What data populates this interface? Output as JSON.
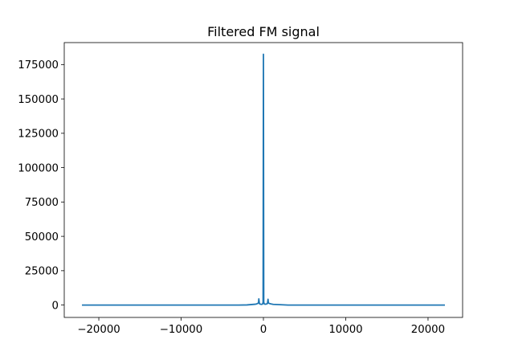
{
  "chart_data": {
    "type": "line",
    "title": "Filtered FM signal",
    "xlabel": "",
    "ylabel": "",
    "xlim": [
      -24200,
      24200
    ],
    "ylim": [
      -9000,
      191000
    ],
    "xticks": [
      -20000,
      -10000,
      0,
      10000,
      20000
    ],
    "xtick_labels": [
      "−20000",
      "−10000",
      "0",
      "10000",
      "20000"
    ],
    "yticks": [
      0,
      25000,
      50000,
      75000,
      100000,
      125000,
      150000,
      175000
    ],
    "ytick_labels": [
      "0",
      "25000",
      "50000",
      "75000",
      "100000",
      "125000",
      "150000",
      "175000"
    ],
    "grid": false,
    "series": [
      {
        "color": "#1f77b4",
        "x": [
          -22050,
          -3000,
          -2000,
          -1000,
          -800,
          -600,
          -560,
          -500,
          -450,
          -300,
          -200,
          -100,
          -40,
          0,
          40,
          100,
          200,
          300,
          450,
          500,
          560,
          600,
          800,
          1000,
          1200,
          2000,
          3000,
          22050
        ],
        "y": [
          0,
          0,
          100,
          600,
          900,
          1500,
          4500,
          1500,
          800,
          600,
          500,
          800,
          2000,
          182500,
          2000,
          900,
          600,
          700,
          900,
          1600,
          4200,
          1500,
          1000,
          700,
          500,
          300,
          0,
          0
        ]
      }
    ]
  }
}
